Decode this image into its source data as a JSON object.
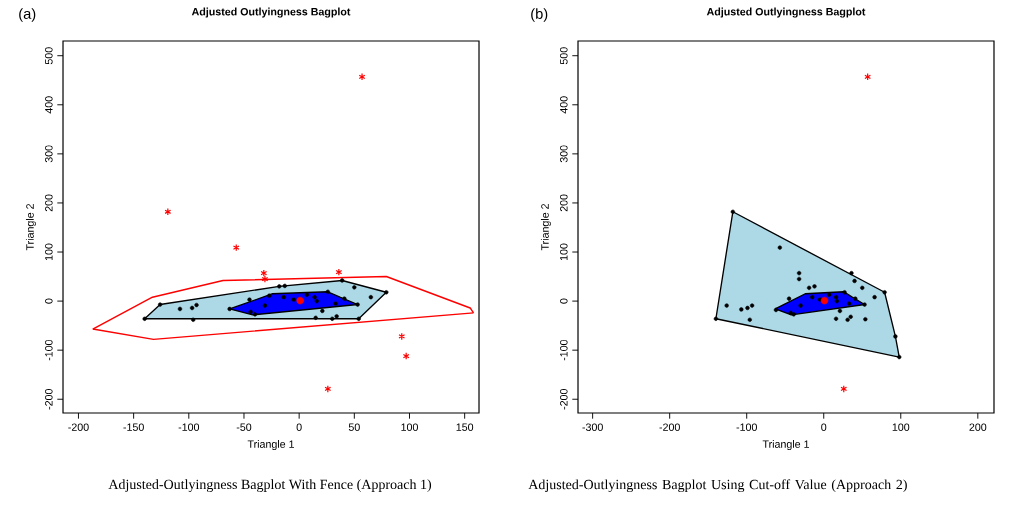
{
  "chart_data": [
    {
      "type": "scatter",
      "title": "Adjusted Outlyingness Bagplot",
      "xlabel": "Triangle 1",
      "ylabel": "Triangle 2",
      "annotations": [
        "(a)",
        "Adjusted-Outlyingness Bagplot With Fence (Approach 1)"
      ],
      "xlim": [
        -214,
        163
      ],
      "ylim": [
        -228,
        530
      ],
      "xticks": [
        -200,
        -150,
        -100,
        -50,
        0,
        50,
        100,
        150
      ],
      "yticks": [
        -200,
        -100,
        0,
        100,
        200,
        300,
        400,
        500
      ],
      "grid": false,
      "series": [
        {
          "type": "line",
          "color": "#ff0000",
          "marker": "none",
          "x": [
            -187,
            -133,
            -69,
            79,
            155,
            158
          ],
          "values": [
            -57,
            8,
            42,
            50,
            -14,
            -24
          ]
        },
        {
          "type": "line",
          "color": "#ff0000",
          "marker": "none",
          "x": [
            -187,
            -132,
            158
          ],
          "values": [
            -57,
            -78,
            -24
          ]
        },
        {
          "type": "area",
          "color": "#add8e6",
          "marker": "none",
          "x": [
            -140,
            -126,
            -18,
            39,
            79,
            54,
            -140
          ],
          "values": [
            -36,
            -7,
            30,
            42,
            18,
            -36,
            -36
          ]
        },
        {
          "type": "area",
          "color": "#0000ff",
          "marker": "none",
          "x": [
            -63,
            -42,
            53,
            37,
            26,
            -24,
            -63
          ],
          "values": [
            -16,
            -28,
            -7,
            8,
            19,
            15,
            -16
          ]
        },
        {
          "type": "scatter",
          "color": "#000000",
          "marker": "circle",
          "x": [
            -140,
            -126,
            -108,
            -97,
            -93,
            -96,
            -63,
            -44,
            -40,
            -31,
            -45,
            -18,
            -13,
            -27,
            -14,
            -5,
            7,
            14,
            16,
            26,
            21,
            15,
            34,
            30,
            39,
            50,
            65,
            79,
            54,
            53,
            41,
            33
          ],
          "values": [
            -36,
            -7,
            -16,
            -14,
            -8,
            -38,
            -16,
            -22,
            -27,
            -9,
            3,
            30,
            31,
            11,
            8,
            3,
            13,
            8,
            0,
            19,
            -20,
            -34,
            -31,
            -36,
            42,
            28,
            8,
            18,
            -36,
            -7,
            5,
            -5
          ]
        },
        {
          "type": "scatter",
          "color": "#ff0000",
          "marker": "cross",
          "x": [
            57,
            -119,
            -57,
            -32,
            -31,
            36,
            93,
            97,
            26
          ],
          "values": [
            457,
            182,
            109,
            57,
            45,
            59,
            -72,
            -112,
            -179
          ]
        },
        {
          "type": "scatter",
          "color": "#ff0000",
          "marker": "circle",
          "x": [
            1
          ],
          "values": [
            1
          ]
        }
      ]
    },
    {
      "type": "scatter",
      "title": "Adjusted Outlyingness Bagplot",
      "xlabel": "Triangle 1",
      "ylabel": "Triangle 2",
      "annotations": [
        "(b)",
        "Adjusted-Outlyingness Bagplot Using Cut-off Value (Approach 2)"
      ],
      "xlim": [
        -319,
        221
      ],
      "ylim": [
        -228,
        530
      ],
      "xticks": [
        -300,
        -200,
        -100,
        0,
        100,
        200
      ],
      "yticks": [
        -200,
        -100,
        0,
        100,
        200,
        300,
        400,
        500
      ],
      "grid": false,
      "series": [
        {
          "type": "area",
          "color": "#add8e6",
          "marker": "none",
          "x": [
            -118,
            79,
            93,
            98,
            -140,
            -118
          ],
          "values": [
            182,
            18,
            -72,
            -114,
            -36,
            182
          ]
        },
        {
          "type": "area",
          "color": "#0000ff",
          "marker": "none",
          "x": [
            -63,
            -42,
            53,
            37,
            26,
            -24,
            -63
          ],
          "values": [
            -16,
            -28,
            -7,
            8,
            19,
            15,
            -16
          ]
        },
        {
          "type": "scatter",
          "color": "#000000",
          "marker": "circle",
          "x": [
            -118,
            -57,
            -32,
            -32,
            36,
            93,
            98,
            -140,
            79,
            -126,
            -107,
            -99,
            -93,
            -96,
            -62,
            -45,
            -43,
            -39,
            -30,
            -19,
            -12,
            -15,
            -5,
            7,
            16,
            17,
            27,
            21,
            16,
            31,
            35,
            40,
            50,
            66,
            53,
            54,
            41,
            33
          ],
          "values": [
            182,
            109,
            57,
            45,
            57,
            -72,
            -114,
            -36,
            18,
            -9,
            -17,
            -14,
            -9,
            -38,
            -18,
            5,
            -24,
            -27,
            -9,
            27,
            30,
            8,
            3,
            13,
            8,
            0,
            18,
            -20,
            -36,
            -38,
            -32,
            41,
            27,
            8,
            -7,
            -37,
            5,
            -5
          ]
        },
        {
          "type": "scatter",
          "color": "#ff0000",
          "marker": "cross",
          "x": [
            57,
            26
          ],
          "values": [
            457,
            -179
          ]
        },
        {
          "type": "scatter",
          "color": "#ff0000",
          "marker": "circle",
          "x": [
            1
          ],
          "values": [
            1
          ]
        }
      ]
    }
  ]
}
